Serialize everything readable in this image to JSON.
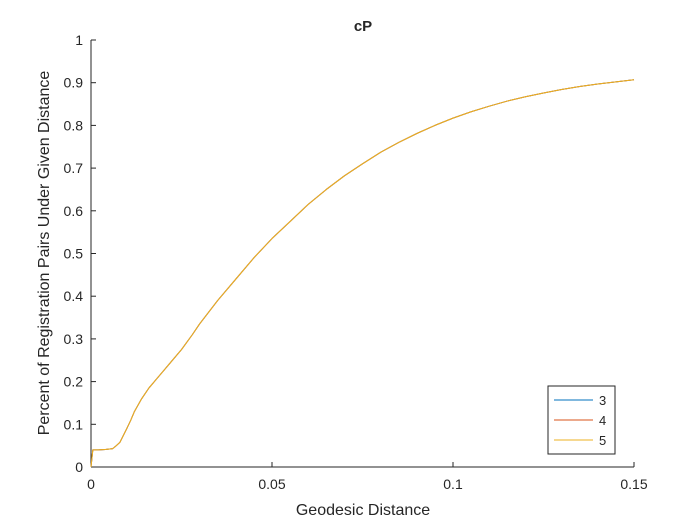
{
  "chart_data": {
    "type": "line",
    "title": "cP",
    "xlabel": "Geodesic Distance",
    "ylabel": "Percent of Registration Pairs Under Given Distance",
    "xlim": [
      0,
      0.15
    ],
    "ylim": [
      0,
      1
    ],
    "xticks": [
      "0",
      "0.05",
      "0.1",
      "0.15"
    ],
    "yticks": [
      "0",
      "0.1",
      "0.2",
      "0.3",
      "0.4",
      "0.5",
      "0.6",
      "0.7",
      "0.8",
      "0.9",
      "1"
    ],
    "legend_position": "bottom-right",
    "grid": false,
    "x": [
      0,
      0.0005,
      0.002,
      0.004,
      0.006,
      0.007,
      0.008,
      0.009,
      0.01,
      0.011,
      0.012,
      0.014,
      0.016,
      0.018,
      0.02,
      0.022,
      0.025,
      0.028,
      0.03,
      0.035,
      0.04,
      0.045,
      0.05,
      0.055,
      0.06,
      0.065,
      0.07,
      0.075,
      0.08,
      0.085,
      0.09,
      0.095,
      0.1,
      0.105,
      0.11,
      0.115,
      0.12,
      0.125,
      0.13,
      0.135,
      0.14,
      0.145,
      0.15
    ],
    "series": [
      {
        "name": "3",
        "color": "#0072bd",
        "values": [
          0.0,
          0.04,
          0.04,
          0.041,
          0.043,
          0.05,
          0.058,
          0.075,
          0.092,
          0.11,
          0.13,
          0.16,
          0.185,
          0.205,
          0.225,
          0.245,
          0.275,
          0.31,
          0.335,
          0.39,
          0.44,
          0.49,
          0.535,
          0.575,
          0.615,
          0.65,
          0.682,
          0.71,
          0.737,
          0.76,
          0.781,
          0.8,
          0.817,
          0.832,
          0.845,
          0.857,
          0.867,
          0.876,
          0.884,
          0.891,
          0.897,
          0.902,
          0.907
        ]
      },
      {
        "name": "4",
        "color": "#d95319",
        "values": [
          0.0,
          0.04,
          0.04,
          0.041,
          0.043,
          0.05,
          0.058,
          0.075,
          0.092,
          0.11,
          0.13,
          0.16,
          0.185,
          0.205,
          0.225,
          0.245,
          0.275,
          0.31,
          0.335,
          0.39,
          0.44,
          0.49,
          0.535,
          0.575,
          0.615,
          0.65,
          0.682,
          0.71,
          0.737,
          0.76,
          0.781,
          0.8,
          0.817,
          0.832,
          0.845,
          0.857,
          0.867,
          0.876,
          0.884,
          0.891,
          0.897,
          0.902,
          0.907
        ]
      },
      {
        "name": "5",
        "color": "#edb120",
        "values": [
          0.0,
          0.04,
          0.04,
          0.041,
          0.043,
          0.05,
          0.058,
          0.075,
          0.092,
          0.11,
          0.13,
          0.16,
          0.185,
          0.205,
          0.225,
          0.245,
          0.275,
          0.31,
          0.335,
          0.39,
          0.44,
          0.49,
          0.535,
          0.575,
          0.615,
          0.65,
          0.682,
          0.71,
          0.737,
          0.76,
          0.781,
          0.8,
          0.817,
          0.832,
          0.845,
          0.857,
          0.867,
          0.876,
          0.884,
          0.891,
          0.897,
          0.902,
          0.907
        ]
      }
    ]
  }
}
